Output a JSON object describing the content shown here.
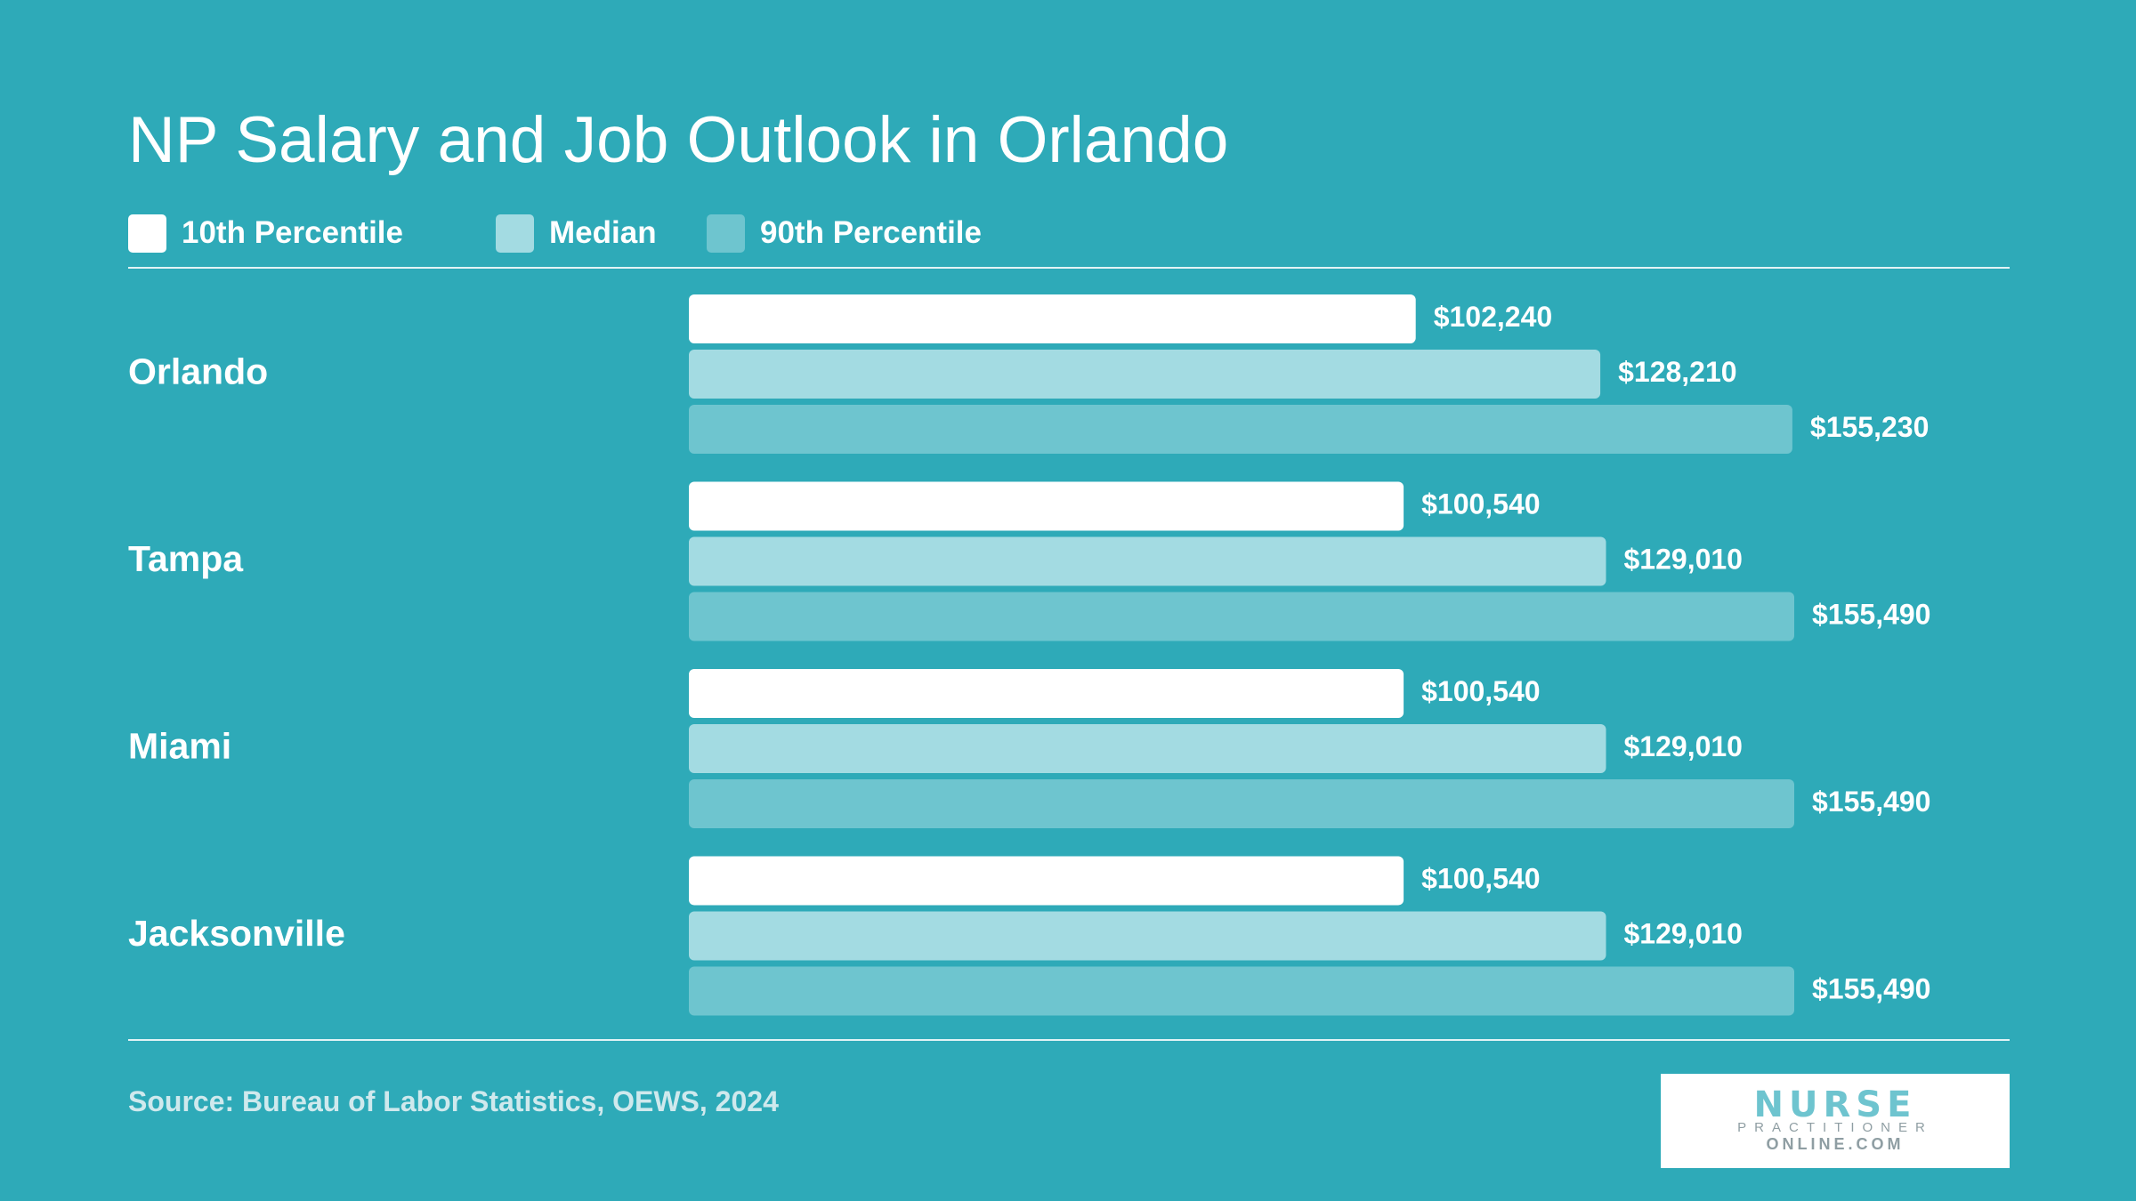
{
  "title": "NP Salary and Job Outlook in Orlando",
  "legend": [
    {
      "label": "10th Percentile",
      "color": "#ffffff"
    },
    {
      "label": "Median",
      "color": "#a3dbe2"
    },
    {
      "label": "90th Percentile",
      "color": "#6ec5cf"
    }
  ],
  "source": "Source: Bureau of Labor Statistics, OEWS, 2024",
  "logo": {
    "line1": "NURSE",
    "line2": "PRACTITIONER",
    "line3": "ONLINE.COM"
  },
  "colors": {
    "background": "#2eaab8",
    "p10": "#ffffff",
    "median": "#a3dbe2",
    "p90": "#6ec5cf"
  },
  "chart_data": {
    "type": "bar",
    "orientation": "horizontal",
    "title": "NP Salary and Job Outlook in Orlando",
    "categories": [
      "Orlando",
      "Tampa",
      "Miami",
      "Jacksonville"
    ],
    "series": [
      {
        "name": "10th Percentile",
        "values": [
          102240,
          100540,
          100540,
          100540
        ],
        "labels": [
          "$102,240",
          "$100,540",
          "$100,540",
          "$100,540"
        ]
      },
      {
        "name": "Median",
        "values": [
          128210,
          129010,
          129010,
          129010
        ],
        "labels": [
          "$128,210",
          "$129,010",
          "$129,010",
          "$129,010"
        ]
      },
      {
        "name": "90th Percentile",
        "values": [
          155230,
          155490,
          155490,
          155490
        ],
        "labels": [
          "$155,230",
          "$155,490",
          "$155,490",
          "$155,490"
        ]
      }
    ],
    "xlim": [
      0,
      155490
    ],
    "grid": false,
    "legend_position": "top-left"
  }
}
